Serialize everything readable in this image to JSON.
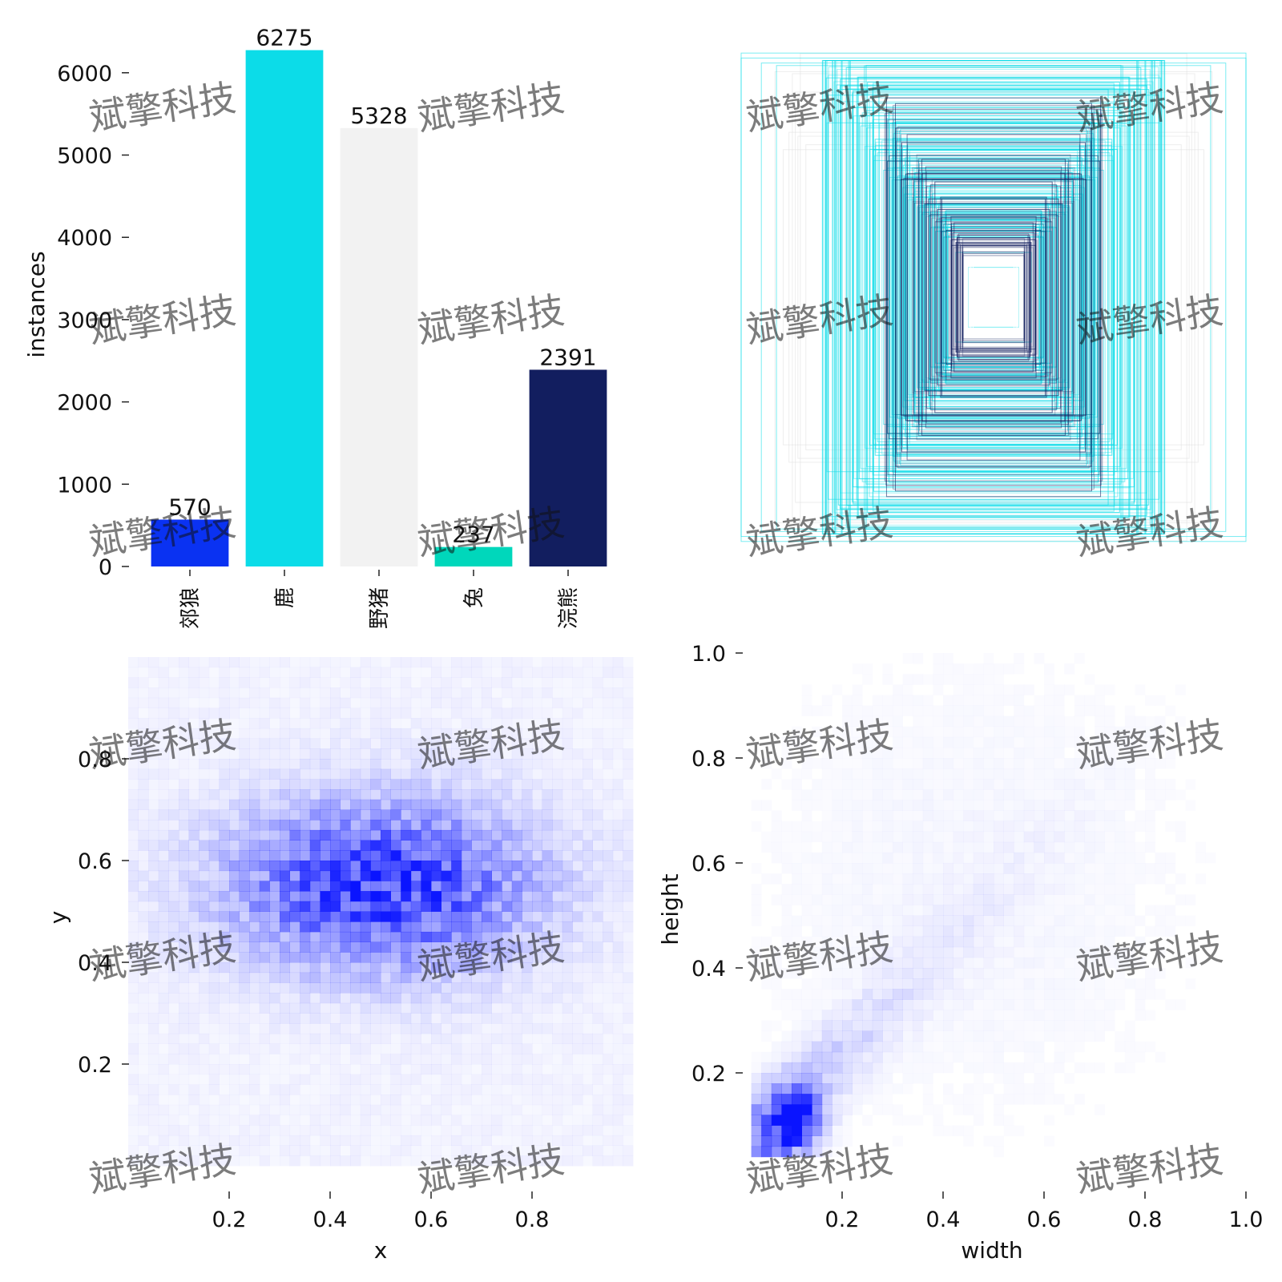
{
  "watermark": "斌擎科技",
  "colors": {
    "bars": [
      "#0a32f2",
      "#0cdce8",
      "#f2f2f2",
      "#00d7bb",
      "#121e5f"
    ],
    "heat": "#0a14ff",
    "boxes_light": "#0cdce8",
    "boxes_dark": "#121e5f"
  },
  "chart_data": [
    {
      "type": "bar",
      "title": "",
      "xlabel": "",
      "ylabel": "instances",
      "categories": [
        "郊狼",
        "鹿",
        "野猪",
        "兔",
        "浣熊"
      ],
      "values": [
        570,
        6275,
        5328,
        237,
        2391
      ],
      "data_labels": [
        "570",
        "6275",
        "5328",
        "237",
        "2391"
      ],
      "ylim": [
        0,
        6300
      ],
      "yticks": [
        "0",
        "1000",
        "2000",
        "3000",
        "4000",
        "5000",
        "6000"
      ],
      "grid": false,
      "legend": "none"
    },
    {
      "type": "scatter",
      "description": "bounding box outlines centered at (0.5, 0.5)",
      "title": "",
      "xlabel": "",
      "ylabel": "",
      "xlim": [
        0,
        1
      ],
      "ylim": [
        0,
        1
      ],
      "axes_visible": false,
      "boxes_wh": [
        [
          1.0,
          0.98
        ],
        [
          1.0,
          0.96
        ],
        [
          0.92,
          0.94
        ],
        [
          0.86,
          0.93
        ],
        [
          0.66,
          0.7
        ],
        [
          0.56,
          0.82
        ],
        [
          0.52,
          0.74
        ],
        [
          0.46,
          0.58
        ],
        [
          0.4,
          0.52
        ],
        [
          0.36,
          0.44
        ],
        [
          0.32,
          0.4
        ],
        [
          0.28,
          0.34
        ],
        [
          0.25,
          0.28
        ],
        [
          0.2,
          0.24
        ],
        [
          0.15,
          0.18
        ],
        [
          0.1,
          0.12
        ]
      ]
    },
    {
      "type": "heatmap",
      "title": "",
      "xlabel": "x",
      "ylabel": "y",
      "xlim": [
        0,
        1
      ],
      "ylim": [
        0,
        1
      ],
      "xticks": [
        "0.2",
        "0.4",
        "0.6",
        "0.8"
      ],
      "yticks": [
        "0.2",
        "0.4",
        "0.6",
        "0.8"
      ],
      "bins": 50,
      "density_peak": [
        0.5,
        0.55
      ],
      "density_spread": [
        0.2,
        0.11
      ]
    },
    {
      "type": "heatmap",
      "title": "",
      "xlabel": "width",
      "ylabel": "height",
      "xlim": [
        0,
        1
      ],
      "ylim": [
        0,
        1
      ],
      "xticks": [
        "0.2",
        "0.4",
        "0.6",
        "0.8",
        "1.0"
      ],
      "yticks": [
        "0.2",
        "0.4",
        "0.6",
        "0.8",
        "1.0"
      ],
      "bins": 50,
      "density_peak": [
        0.1,
        0.11
      ],
      "trend": "height increases with width"
    }
  ]
}
